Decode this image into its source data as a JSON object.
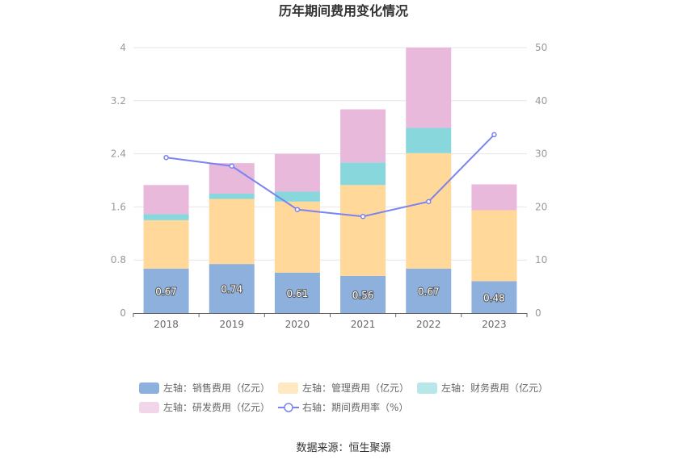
{
  "chart_data": {
    "type": "bar",
    "title": "历年期间费用变化情况",
    "categories": [
      "2018",
      "2019",
      "2020",
      "2021",
      "2022",
      "2023"
    ],
    "left_axis": {
      "ylim": [
        0,
        4
      ],
      "ticks": [
        "0",
        "0.8",
        "1.6",
        "2.4",
        "3.2",
        "4"
      ]
    },
    "right_axis": {
      "ylim": [
        0,
        50
      ],
      "ticks": [
        "0",
        "10",
        "20",
        "30",
        "40",
        "50"
      ]
    },
    "series": [
      {
        "name": "左轴：销售费用（亿元）",
        "type": "bar",
        "axis": "left",
        "stack": true,
        "color": "#8eb0dc",
        "values": [
          0.67,
          0.74,
          0.61,
          0.56,
          0.67,
          0.48
        ],
        "labels": [
          "0.67",
          "0.74",
          "0.61",
          "0.56",
          "0.67",
          "0.48"
        ]
      },
      {
        "name": "左轴：管理费用（亿元）",
        "type": "bar",
        "axis": "left",
        "stack": true,
        "color": "#ffd89a",
        "values": [
          0.73,
          0.98,
          1.07,
          1.37,
          1.74,
          1.07
        ]
      },
      {
        "name": "左轴：财务费用（亿元）",
        "type": "bar",
        "axis": "left",
        "stack": true,
        "color": "#88d7dc",
        "values": [
          0.09,
          0.08,
          0.15,
          0.34,
          0.38,
          0.0
        ]
      },
      {
        "name": "左轴：研发费用（亿元）",
        "type": "bar",
        "axis": "left",
        "stack": true,
        "color": "#e8b9da",
        "values": [
          0.44,
          0.46,
          0.57,
          0.8,
          1.21,
          0.39
        ]
      },
      {
        "name": "右轴：期间费用率（%）",
        "type": "line",
        "axis": "right",
        "color": "#7b83f0",
        "values": [
          29.3,
          27.7,
          19.5,
          18.2,
          21.0,
          33.6
        ]
      }
    ],
    "legend_position": "bottom",
    "grid": true
  },
  "source": "数据来源：恒生聚源"
}
